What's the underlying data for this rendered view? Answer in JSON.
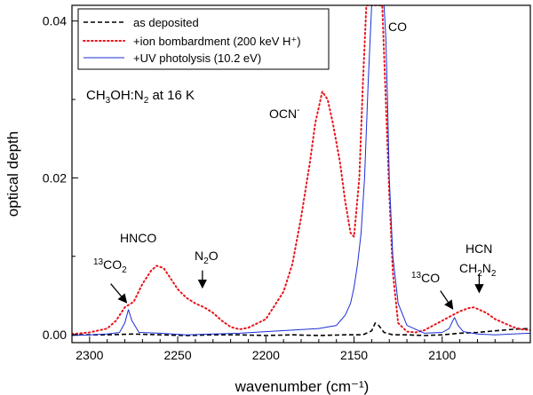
{
  "chart_data": {
    "type": "line",
    "title": "",
    "xlabel": "wavenumber (cm⁻¹)",
    "ylabel": "optical depth",
    "xlim": [
      2310,
      2050
    ],
    "ylim": [
      -0.001,
      0.042
    ],
    "x_ticks": [
      2300,
      2250,
      2200,
      2150,
      2100
    ],
    "x_tick_labels": [
      "2300",
      "2250",
      "2200",
      "2150",
      "2100"
    ],
    "y_ticks": [
      0.0,
      0.02,
      0.04
    ],
    "y_tick_labels": [
      "0.00",
      "0.02",
      "0.04"
    ],
    "legend_position": "top-left",
    "series": [
      {
        "name": "as deposited",
        "color": "#000000",
        "style": "dashed",
        "x": [
          2310,
          2290,
          2275,
          2260,
          2245,
          2230,
          2215,
          2200,
          2185,
          2170,
          2155,
          2145,
          2140,
          2138,
          2136,
          2133,
          2128,
          2120,
          2110,
          2100,
          2090,
          2080,
          2070,
          2060,
          2050
        ],
        "y": [
          0.0,
          0.0,
          0.0001,
          0.0,
          -0.0001,
          0.0,
          0.0,
          -0.0001,
          0.0,
          -0.0001,
          0.0,
          0.0,
          0.0005,
          0.0015,
          0.0012,
          0.0003,
          0.0,
          0.0,
          -0.0001,
          0.0,
          0.0002,
          0.0003,
          0.0005,
          0.0007,
          0.0008
        ]
      },
      {
        "name": "+ion bombardment (200 keV H⁺)",
        "color": "#e8141c",
        "style": "dotted",
        "x": [
          2310,
          2300,
          2290,
          2285,
          2280,
          2275,
          2270,
          2265,
          2262,
          2258,
          2255,
          2250,
          2245,
          2240,
          2235,
          2230,
          2225,
          2220,
          2215,
          2210,
          2200,
          2190,
          2185,
          2180,
          2175,
          2172,
          2168,
          2165,
          2162,
          2158,
          2155,
          2152,
          2150,
          2147,
          2145,
          2143,
          2141,
          2139,
          2138,
          2136,
          2134,
          2132,
          2130,
          2128,
          2125,
          2120,
          2115,
          2110,
          2105,
          2100,
          2095,
          2090,
          2085,
          2082,
          2080,
          2075,
          2070,
          2065,
          2060,
          2055,
          2050
        ],
        "y": [
          0.0001,
          0.0003,
          0.0008,
          0.0018,
          0.0035,
          0.0042,
          0.0065,
          0.0082,
          0.0088,
          0.0085,
          0.0075,
          0.0058,
          0.0047,
          0.004,
          0.0035,
          0.0028,
          0.0018,
          0.001,
          0.0007,
          0.0009,
          0.002,
          0.0055,
          0.009,
          0.015,
          0.022,
          0.027,
          0.031,
          0.03,
          0.027,
          0.022,
          0.017,
          0.013,
          0.0125,
          0.02,
          0.032,
          0.042,
          0.042,
          0.042,
          0.042,
          0.042,
          0.042,
          0.03,
          0.018,
          0.008,
          0.0015,
          0.0004,
          0.0003,
          0.0006,
          0.0012,
          0.0018,
          0.0024,
          0.003,
          0.0034,
          0.0035,
          0.0033,
          0.0028,
          0.002,
          0.0015,
          0.001,
          0.0007,
          0.0006
        ]
      },
      {
        "name": "+UV photolysis (10.2 eV)",
        "color": "#1a2fd6",
        "style": "solid",
        "x": [
          2310,
          2300,
          2290,
          2283,
          2280,
          2278,
          2276,
          2272,
          2260,
          2245,
          2230,
          2215,
          2200,
          2185,
          2170,
          2160,
          2155,
          2152,
          2150,
          2148,
          2146,
          2144,
          2143,
          2142,
          2141,
          2140,
          2139,
          2138,
          2137,
          2136,
          2135,
          2134,
          2133,
          2132,
          2131,
          2130,
          2128,
          2125,
          2120,
          2110,
          2100,
          2096,
          2094,
          2093,
          2091,
          2088,
          2080,
          2070,
          2060,
          2050
        ],
        "y": [
          -0.0001,
          0.0,
          0.0001,
          0.0003,
          0.0015,
          0.0032,
          0.0018,
          0.0003,
          0.0002,
          0.0,
          0.0001,
          0.0002,
          0.0004,
          0.0006,
          0.0008,
          0.0012,
          0.0025,
          0.004,
          0.006,
          0.009,
          0.013,
          0.02,
          0.026,
          0.032,
          0.037,
          0.042,
          0.042,
          0.042,
          0.042,
          0.042,
          0.042,
          0.042,
          0.042,
          0.038,
          0.03,
          0.02,
          0.01,
          0.004,
          0.0012,
          0.0002,
          0.0003,
          0.0008,
          0.0018,
          0.0022,
          0.0012,
          0.0004,
          0.0001,
          0.0,
          0.0001,
          0.0002
        ]
      }
    ],
    "annotations": {
      "sample": {
        "main": "CH",
        "sub1": "3",
        "mid": "OH:N",
        "sub2": "2",
        "tail": " at 16 K"
      },
      "co": "CO",
      "ocn": {
        "main": "OCN",
        "sup": "-"
      },
      "hnco": "HNCO",
      "co2_13": {
        "sup": "13",
        "main": "CO",
        "sub": "2"
      },
      "n2o": {
        "main": "N",
        "sub": "2",
        "tail": "O"
      },
      "co_13": {
        "sup": "13",
        "main": "CO"
      },
      "hcn": "HCN",
      "ch2n2": {
        "a": "CH",
        "sub1": "2",
        "b": "N",
        "sub2": "2"
      }
    },
    "arrows": [
      {
        "id": "co2-13",
        "from": [
          2288,
          0.0065
        ],
        "to": [
          2279,
          0.0041
        ]
      },
      {
        "id": "n2o",
        "from": [
          2236,
          0.0082
        ],
        "to": [
          2236,
          0.006
        ]
      },
      {
        "id": "co-13",
        "from": [
          2101,
          0.0056
        ],
        "to": [
          2094,
          0.0033
        ]
      },
      {
        "id": "hcn",
        "from": [
          2079,
          0.0078
        ],
        "to": [
          2079,
          0.0054
        ]
      }
    ]
  }
}
